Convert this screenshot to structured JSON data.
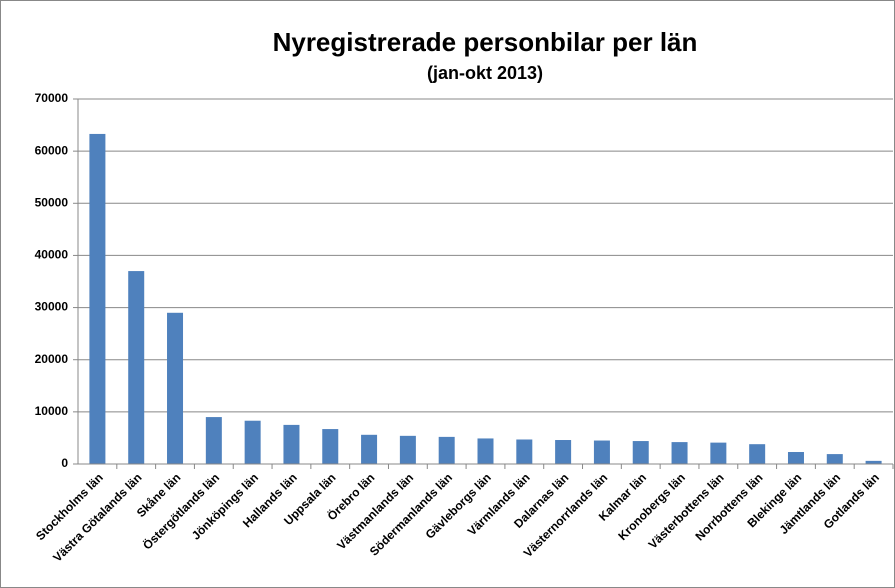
{
  "chart_data": {
    "type": "bar",
    "title": "Nyregistrerade personbilar per län",
    "subtitle": "(jan-okt 2013)",
    "categories": [
      "Stockholms län",
      "Västra Götalands län",
      "Skåne län",
      "Östergötlands län",
      "Jönköpings län",
      "Hallands län",
      "Uppsala län",
      "Örebro län",
      "Västmanlands län",
      "Södermanlands län",
      "Gävleborgs län",
      "Värmlands län",
      "Dalarnas län",
      "Västernorrlands län",
      "Kalmar län",
      "Kronobergs län",
      "Västerbottens län",
      "Norrbottens län",
      "Blekinge län",
      "Jämtlands län",
      "Gotlands län"
    ],
    "values": [
      63300,
      37000,
      29000,
      9000,
      8300,
      7500,
      6700,
      5600,
      5400,
      5200,
      4900,
      4700,
      4600,
      4500,
      4400,
      4200,
      4100,
      3800,
      2300,
      1900,
      600
    ],
    "color": "#4f81bd",
    "ylim": [
      0,
      70000
    ],
    "yticks": [
      0,
      10000,
      20000,
      30000,
      40000,
      50000,
      60000,
      70000
    ],
    "grid": true
  }
}
